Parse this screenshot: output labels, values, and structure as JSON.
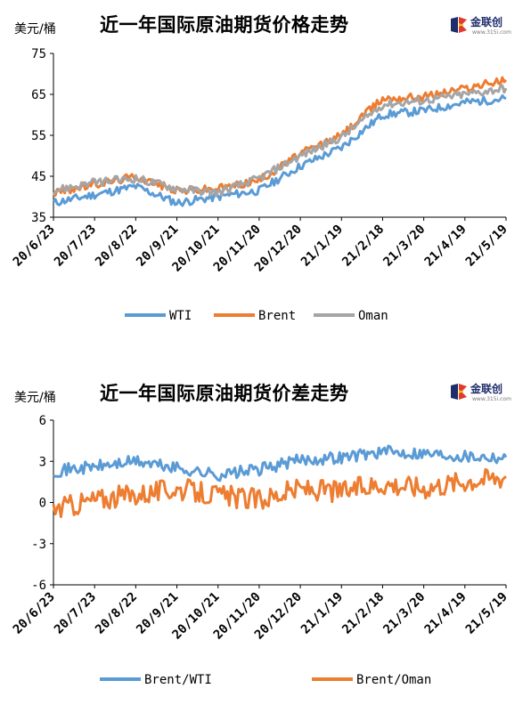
{
  "top": {
    "unit": "美元/桶",
    "title": "近一年国际原油期货价格走势",
    "logo_text": "金联创",
    "logo_url": "www.315i.com"
  },
  "bottom": {
    "unit": "美元/桶",
    "title": "近一年国际原油期货价差走势",
    "logo_text": "金联创",
    "logo_url": "www.315i.com"
  },
  "colors": {
    "wti": "#5b9bd5",
    "brent": "#ed7d31",
    "oman": "#a5a5a5",
    "axis": "#000000"
  },
  "chart_data": [
    {
      "type": "line",
      "title": "近一年国际原油期货价格走势",
      "ylabel": "美元/桶",
      "ylim": [
        35,
        75
      ],
      "yticks": [
        "35",
        "45",
        "55",
        "65",
        "75"
      ],
      "grid": false,
      "legend": "bottom",
      "x": [
        "20/6/23",
        "20/7/23",
        "20/8/22",
        "20/9/21",
        "20/10/21",
        "20/11/20",
        "20/12/20",
        "21/1/19",
        "21/2/18",
        "21/3/20",
        "21/4/19",
        "21/5/19"
      ],
      "series": [
        {
          "name": "WTI",
          "values": [
            38.5,
            40.5,
            42.5,
            38.5,
            40.0,
            41.5,
            47.5,
            52.0,
            60.0,
            61.0,
            63.0,
            64.0
          ]
        },
        {
          "name": "Brent",
          "values": [
            41.0,
            43.0,
            45.0,
            41.5,
            42.0,
            44.0,
            50.5,
            55.0,
            64.0,
            64.5,
            66.5,
            68.5
          ]
        },
        {
          "name": "Oman",
          "values": [
            41.5,
            43.5,
            44.5,
            42.0,
            41.0,
            44.5,
            50.0,
            54.5,
            62.5,
            63.5,
            65.0,
            66.5
          ]
        }
      ]
    },
    {
      "type": "line",
      "title": "近一年国际原油期货价差走势",
      "ylabel": "美元/桶",
      "ylim": [
        -6,
        6
      ],
      "yticks": [
        "-6",
        "-3",
        "0",
        "3",
        "6"
      ],
      "grid": false,
      "legend": "bottom",
      "x": [
        "20/6/23",
        "20/7/23",
        "20/8/22",
        "20/9/21",
        "20/10/21",
        "20/11/20",
        "20/12/20",
        "21/1/19",
        "21/2/18",
        "21/3/20",
        "21/4/19",
        "21/5/19"
      ],
      "series": [
        {
          "name": "Brent/WTI",
          "values": [
            2.3,
            2.6,
            3.0,
            2.5,
            2.0,
            2.4,
            3.1,
            3.3,
            3.7,
            3.6,
            3.4,
            3.3
          ]
        },
        {
          "name": "Brent/Oman",
          "values": [
            -0.5,
            0.2,
            0.6,
            1.0,
            0.5,
            0.2,
            1.0,
            0.8,
            1.4,
            1.1,
            1.6,
            1.9
          ]
        }
      ]
    }
  ]
}
